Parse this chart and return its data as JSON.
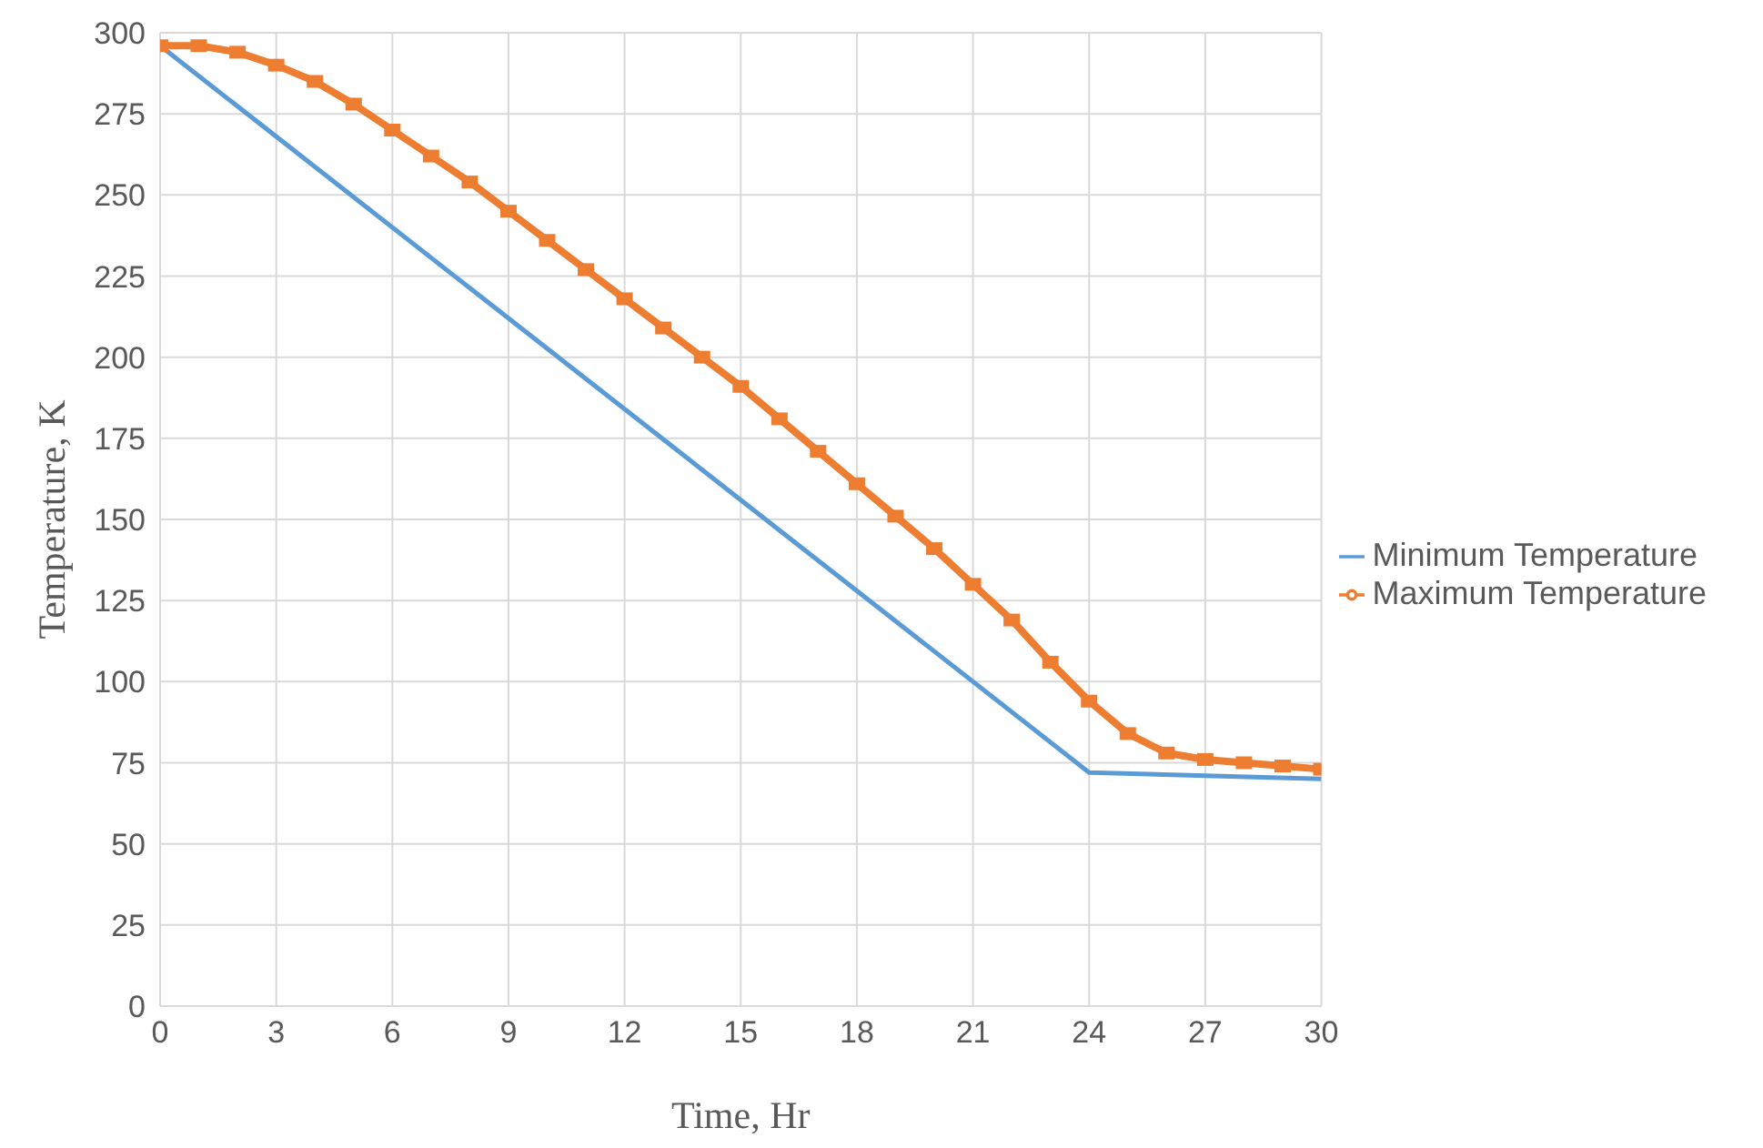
{
  "chart_data": {
    "type": "line",
    "xlabel": "Time, Hr",
    "ylabel": "Temperature, K",
    "xlim": [
      0,
      30
    ],
    "xticks": [
      0,
      3,
      6,
      9,
      12,
      15,
      18,
      21,
      24,
      27,
      30
    ],
    "ylim": [
      0,
      300
    ],
    "yticks": [
      0,
      25,
      50,
      75,
      100,
      125,
      150,
      175,
      200,
      225,
      250,
      275,
      300
    ],
    "grid": true,
    "legend": "right",
    "series": [
      {
        "name": "Minimum Temperature",
        "color": "#5b9bd5",
        "marker": "none",
        "x": [
          0,
          24,
          27,
          30
        ],
        "values": [
          296,
          72,
          71,
          70
        ]
      },
      {
        "name": "Maximum Temperature",
        "color": "#ed7d31",
        "marker": "square",
        "x": [
          0,
          1,
          2,
          3,
          4,
          5,
          6,
          7,
          8,
          9,
          10,
          11,
          12,
          13,
          14,
          15,
          16,
          17,
          18,
          19,
          20,
          21,
          22,
          23,
          24,
          25,
          26,
          27,
          28,
          29,
          30
        ],
        "values": [
          296,
          296,
          294,
          290,
          285,
          278,
          270,
          262,
          254,
          245,
          236,
          227,
          218,
          209,
          200,
          191,
          181,
          171,
          161,
          151,
          141,
          130,
          119,
          106,
          94,
          84,
          78,
          76,
          75,
          74,
          73
        ]
      }
    ]
  }
}
